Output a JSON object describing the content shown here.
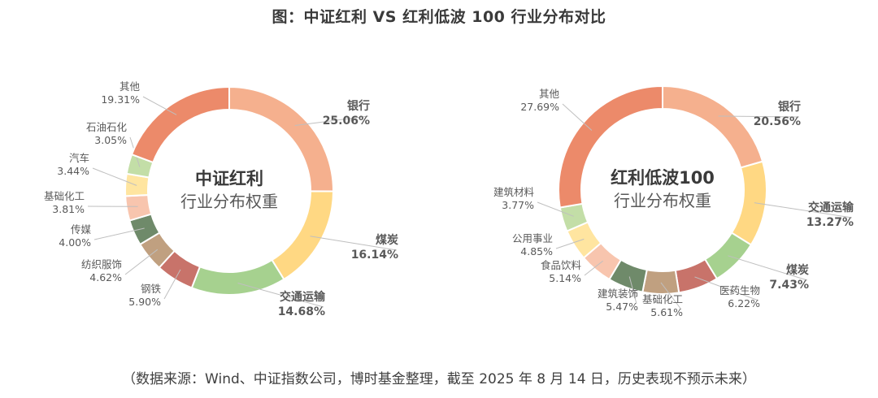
{
  "title": "图：中证红利  VS  红利低波 100  行业分布对比",
  "source": "（数据来源：Wind、中证指数公司，博时基金整理，截至 2025 年 8 月 14 日，历史表现不预示未来）",
  "chart_data": [
    {
      "type": "pie",
      "center_title": "中证红利",
      "center_subtitle": "行业分布权重",
      "categories": [
        "银行",
        "煤炭",
        "交通运输",
        "钢铁",
        "纺织服饰",
        "传媒",
        "基础化工",
        "汽车",
        "石油石化",
        "其他"
      ],
      "values": [
        25.06,
        16.14,
        14.68,
        5.9,
        4.62,
        4.0,
        3.81,
        3.44,
        3.05,
        19.31
      ],
      "value_labels": [
        "25.06%",
        "16.14%",
        "14.68%",
        "5.90%",
        "4.62%",
        "4.00%",
        "3.81%",
        "3.44%",
        "3.05%",
        "19.31%"
      ],
      "colors": [
        "#f5b08e",
        "#ffd883",
        "#a6d18f",
        "#c8736a",
        "#c0a080",
        "#6f8a6a",
        "#f8c5ae",
        "#ffe5a0",
        "#c3dea7",
        "#ec8a6a"
      ],
      "highlight": [
        true,
        true,
        true,
        false,
        false,
        false,
        false,
        false,
        false,
        false
      ],
      "highlight_colors": [
        "#e3782c",
        "#c69a0b",
        "#4ea835",
        null,
        null,
        null,
        null,
        null,
        null,
        null
      ]
    },
    {
      "type": "pie",
      "center_title": "红利低波100",
      "center_subtitle": "行业分布权重",
      "categories": [
        "银行",
        "交通运输",
        "煤炭",
        "医药生物",
        "基础化工",
        "建筑装饰",
        "食品饮料",
        "公用事业",
        "建筑材料",
        "其他"
      ],
      "values": [
        20.56,
        13.27,
        7.43,
        6.22,
        5.61,
        5.47,
        5.14,
        4.85,
        3.77,
        27.69
      ],
      "value_labels": [
        "20.56%",
        "13.27%",
        "7.43%",
        "6.22%",
        "5.61%",
        "5.47%",
        "5.14%",
        "4.85%",
        "3.77%",
        "27.69%"
      ],
      "colors": [
        "#f5b08e",
        "#ffd883",
        "#a6d18f",
        "#c8736a",
        "#c0a080",
        "#6f8a6a",
        "#f8c5ae",
        "#ffe5a0",
        "#c3dea7",
        "#ec8a6a"
      ],
      "highlight": [
        true,
        true,
        true,
        false,
        false,
        false,
        false,
        false,
        false,
        false
      ],
      "highlight_colors": [
        "#e3782c",
        "#c69a0b",
        "#4ea835",
        null,
        null,
        null,
        null,
        null,
        null,
        null
      ]
    }
  ]
}
